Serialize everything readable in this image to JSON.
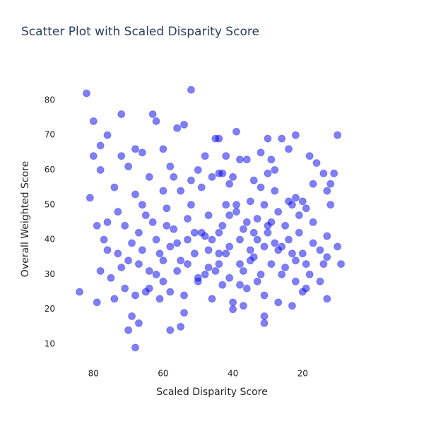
{
  "chart_data": {
    "type": "scatter",
    "title": "Scatter Plot with Scaled Disparity Score",
    "x_label": "Scaled Disparity Score",
    "y_label": "Overall Weighted Score",
    "color": "#0000ee",
    "grid": false,
    "x_reversed": true,
    "xlim": [
      90.6,
      1.4
    ],
    "ylim": [
      3.3,
      88.5
    ],
    "xticks": [
      80,
      60,
      40,
      20
    ],
    "yticks": [
      10,
      20,
      30,
      40,
      50,
      60,
      70,
      80
    ],
    "x": [
      82,
      80,
      52,
      72,
      63,
      62,
      76,
      78,
      45,
      44,
      39,
      22,
      10,
      30,
      26,
      60,
      66,
      68,
      72,
      56,
      54,
      48,
      42,
      38,
      36,
      32,
      29,
      24,
      18,
      16,
      14,
      11,
      12,
      17,
      78,
      80,
      70,
      64,
      58,
      50,
      46,
      44,
      40,
      34,
      30,
      28,
      22,
      20,
      13,
      81,
      74,
      68,
      65,
      60,
      55,
      52,
      49,
      43,
      41,
      35,
      31,
      27,
      23,
      19,
      12,
      79,
      76,
      71,
      67,
      63,
      59,
      57,
      53,
      47,
      44,
      39,
      37,
      33,
      29,
      25,
      21,
      17,
      13,
      10,
      84,
      77,
      73,
      69,
      66,
      62,
      58,
      55,
      51,
      48,
      46,
      42,
      38,
      34,
      31,
      28,
      24,
      20,
      15,
      9,
      78,
      75,
      70,
      67,
      64,
      60,
      56,
      53,
      50,
      47,
      44,
      41,
      37,
      35,
      32,
      29,
      26,
      22,
      19,
      14,
      79,
      74,
      71,
      68,
      65,
      61,
      58,
      54,
      50,
      46,
      43,
      40,
      36,
      33,
      31,
      27,
      23,
      20,
      13,
      69,
      70,
      67,
      58,
      55,
      54,
      40,
      37,
      31,
      31,
      68,
      64,
      60,
      56,
      51,
      47,
      43,
      41,
      39,
      36,
      33,
      30,
      27,
      25,
      22,
      18,
      15,
      73,
      66,
      61,
      57,
      52,
      49,
      45,
      42,
      38,
      35,
      32,
      28,
      24,
      21,
      17,
      13,
      76,
      72,
      62,
      59,
      53,
      48,
      44,
      41,
      38,
      34,
      30,
      26,
      23,
      19
    ],
    "values": [
      82,
      74,
      83,
      76,
      76,
      74,
      70,
      67,
      69,
      69,
      71,
      70,
      70,
      69,
      69,
      66,
      65,
      66,
      64,
      72,
      73,
      64,
      64,
      63,
      63,
      65,
      63,
      66,
      64,
      62,
      59,
      59,
      56,
      56,
      60,
      64,
      61,
      58,
      61,
      60,
      58,
      59,
      58,
      57,
      59,
      60,
      52,
      51,
      54,
      52,
      55,
      53,
      47,
      54,
      54,
      50,
      55,
      59,
      56,
      51,
      50,
      48,
      50,
      49,
      50,
      44,
      45,
      44,
      42,
      45,
      49,
      43,
      46,
      47,
      42,
      48,
      43,
      46,
      45,
      44,
      42,
      39,
      41,
      38,
      25,
      40,
      36,
      39,
      37,
      40,
      38,
      34,
      36,
      41,
      40,
      36,
      33,
      35,
      38,
      39,
      40,
      36,
      37,
      33,
      31,
      29,
      34,
      33,
      31,
      34,
      31,
      33,
      29,
      32,
      33,
      29,
      31,
      34,
      30,
      33,
      30,
      28,
      26,
      33,
      22,
      23,
      26,
      24,
      25,
      23,
      25,
      24,
      28,
      23,
      27,
      22,
      26,
      28,
      24,
      22,
      21,
      25,
      23,
      18,
      14,
      16,
      14,
      15,
      19,
      20,
      21,
      18,
      16,
      9,
      26,
      28,
      39,
      42,
      37,
      44,
      47,
      50,
      45,
      40,
      42,
      37,
      32,
      34,
      30,
      28,
      48,
      50,
      36,
      58,
      57,
      42,
      31,
      50,
      27,
      37,
      55,
      54,
      51,
      47,
      45,
      35,
      37,
      32,
      30,
      44,
      40,
      30,
      36,
      38,
      40,
      42,
      44,
      38,
      36,
      33
    ]
  }
}
